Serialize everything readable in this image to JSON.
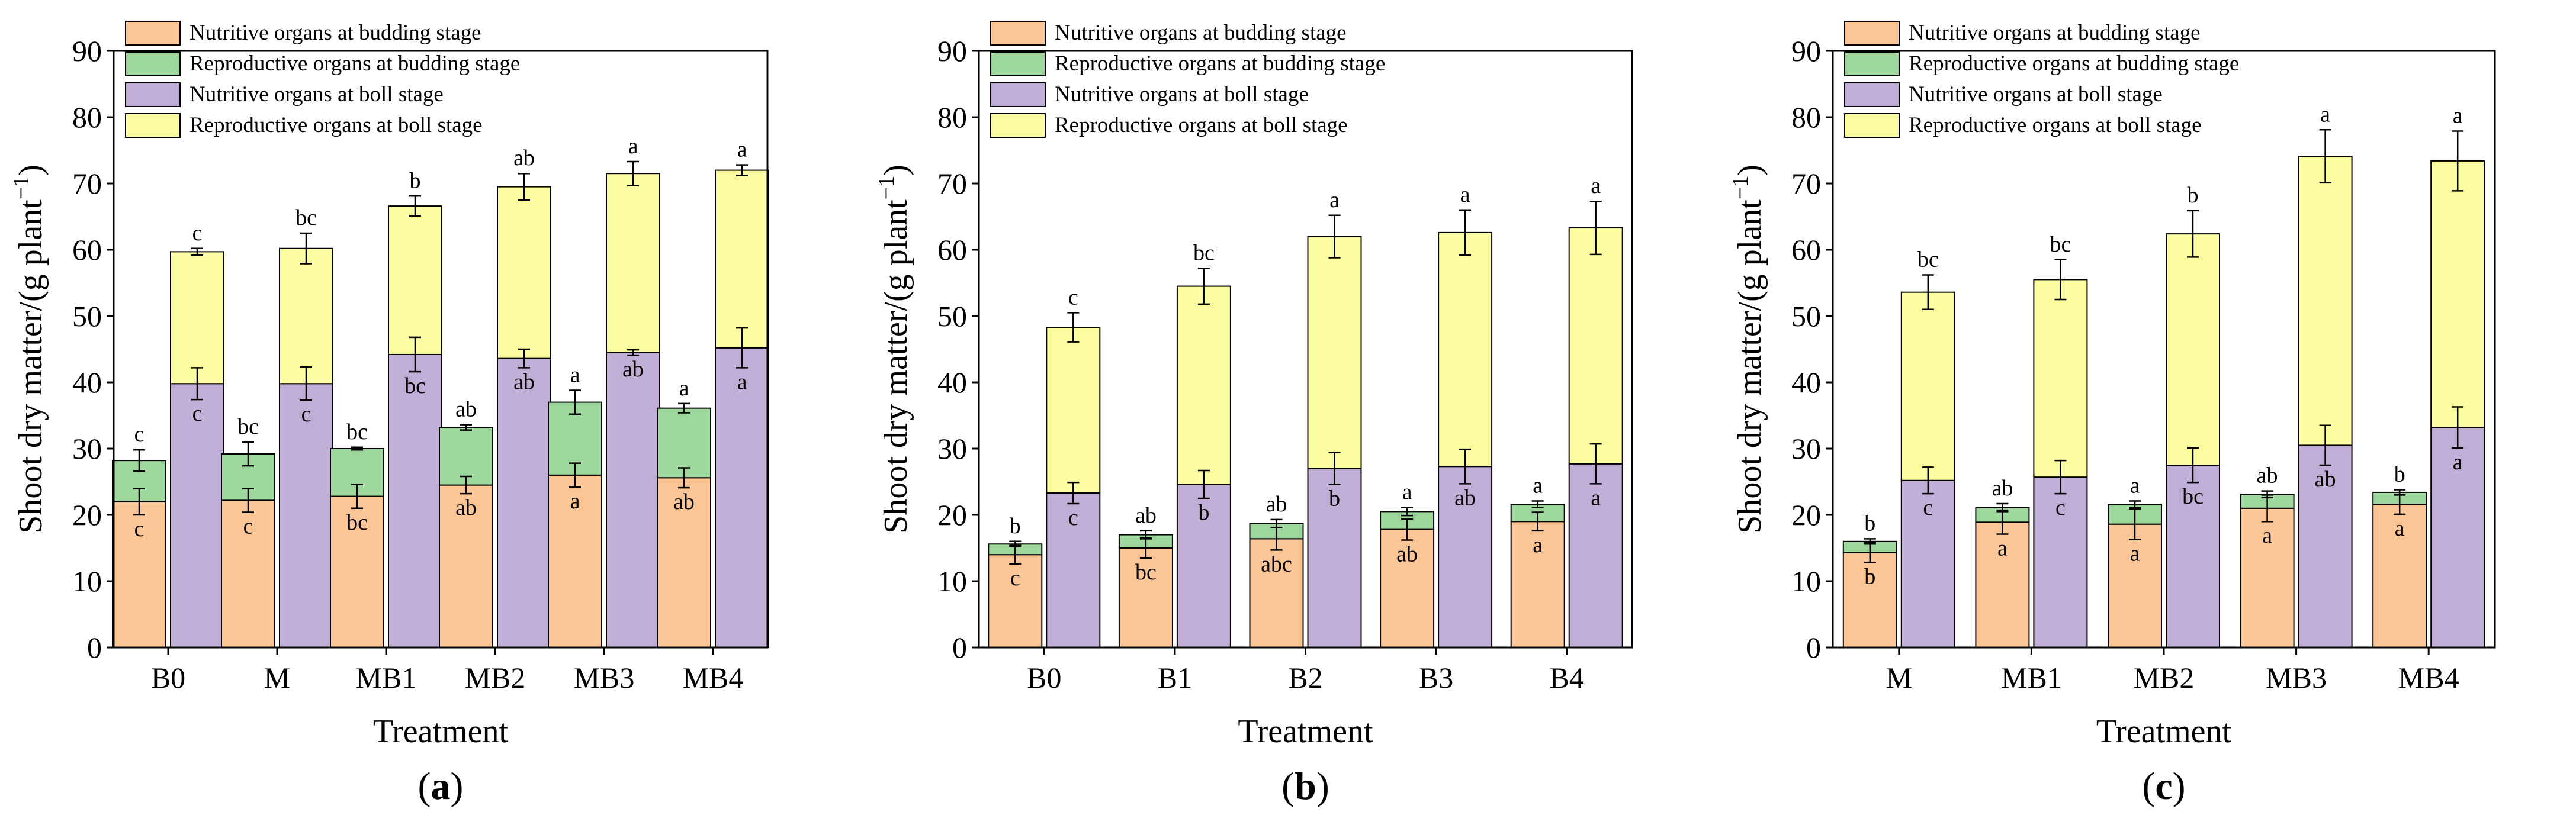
{
  "colors": {
    "nutritive_budding": "#FCC596",
    "reproductive_budding": "#9DD79B",
    "nutritive_boll": "#C0AED6",
    "reproductive_boll": "#FCFCA0"
  },
  "legend": [
    {
      "key": "nutritive_budding",
      "label": "Nutritive organs at budding stage"
    },
    {
      "key": "reproductive_budding",
      "label": "Reproductive organs at budding stage"
    },
    {
      "key": "nutritive_boll",
      "label": "Nutritive organs at boll stage"
    },
    {
      "key": "reproductive_boll",
      "label": "Reproductive organs at boll stage"
    }
  ],
  "chart_data": [
    {
      "type": "bar",
      "stacked": true,
      "panel": "a",
      "xlabel": "Treatment",
      "ylabel": "Shoot dry matter/(g plant",
      "ylabel_sup": "−1",
      "ylabel_close": ")",
      "ylim": [
        0,
        90
      ],
      "yticks": [
        0,
        10,
        20,
        30,
        40,
        50,
        60,
        70,
        80,
        90
      ],
      "categories": [
        "B0",
        "M",
        "MB1",
        "MB2",
        "MB3",
        "MB4"
      ],
      "budding": {
        "nutritive": [
          22.0,
          22.2,
          22.8,
          24.5,
          26.0,
          25.6
        ],
        "reproductive": [
          6.2,
          7.0,
          7.2,
          8.7,
          11.0,
          10.5
        ],
        "total": [
          28.2,
          29.2,
          30.0,
          33.2,
          37.0,
          36.1
        ],
        "nutritive_err": [
          2.0,
          1.8,
          1.8,
          1.3,
          1.8,
          1.5
        ],
        "total_err": [
          1.6,
          1.8,
          0.2,
          0.4,
          1.8,
          0.7
        ],
        "nutritive_letters": [
          "c",
          "c",
          "bc",
          "ab",
          "a",
          "ab"
        ],
        "total_letters": [
          "c",
          "bc",
          "bc",
          "ab",
          "a",
          "a"
        ]
      },
      "boll": {
        "nutritive": [
          39.8,
          39.8,
          44.2,
          43.6,
          44.5,
          45.2
        ],
        "reproductive": [
          19.9,
          20.4,
          22.4,
          25.9,
          27.0,
          26.8
        ],
        "total": [
          59.7,
          60.2,
          66.6,
          69.5,
          71.5,
          72.0
        ],
        "nutritive_err": [
          2.4,
          2.5,
          2.6,
          1.4,
          0.4,
          3.0
        ],
        "total_err": [
          0.5,
          2.3,
          1.5,
          2.0,
          1.8,
          0.8
        ],
        "nutritive_letters": [
          "c",
          "c",
          "bc",
          "ab",
          "ab",
          "a"
        ],
        "total_letters": [
          "c",
          "bc",
          "b",
          "ab",
          "a",
          "a"
        ]
      }
    },
    {
      "type": "bar",
      "stacked": true,
      "panel": "b",
      "xlabel": "Treatment",
      "ylabel": "Shoot dry matter/(g plant",
      "ylabel_sup": "−1",
      "ylabel_close": ")",
      "ylim": [
        0,
        90
      ],
      "yticks": [
        0,
        10,
        20,
        30,
        40,
        50,
        60,
        70,
        80,
        90
      ],
      "categories": [
        "B0",
        "B1",
        "B2",
        "B3",
        "B4"
      ],
      "budding": {
        "nutritive": [
          14.0,
          15.0,
          16.4,
          17.8,
          19.0
        ],
        "reproductive": [
          1.6,
          2.0,
          2.3,
          2.7,
          2.6
        ],
        "total": [
          15.6,
          17.0,
          18.7,
          20.5,
          21.6
        ],
        "nutritive_err": [
          1.4,
          1.5,
          1.7,
          1.6,
          1.4
        ],
        "total_err": [
          0.4,
          0.6,
          0.6,
          0.6,
          0.5
        ],
        "nutritive_letters": [
          "c",
          "bc",
          "abc",
          "ab",
          "a"
        ],
        "total_letters": [
          "b",
          "ab",
          "ab",
          "a",
          "a"
        ]
      },
      "boll": {
        "nutritive": [
          23.3,
          24.6,
          27.0,
          27.3,
          27.7
        ],
        "reproductive": [
          25.0,
          29.9,
          35.0,
          35.3,
          35.6
        ],
        "total": [
          48.3,
          54.5,
          62.0,
          62.6,
          63.3
        ],
        "nutritive_err": [
          1.6,
          2.1,
          2.4,
          2.6,
          3.0
        ],
        "total_err": [
          2.2,
          2.7,
          3.2,
          3.4,
          4.0
        ],
        "nutritive_letters": [
          "c",
          "b",
          "b",
          "ab",
          "a"
        ],
        "total_letters": [
          "c",
          "bc",
          "a",
          "a",
          "a"
        ]
      }
    },
    {
      "type": "bar",
      "stacked": true,
      "panel": "c",
      "xlabel": "Treatment",
      "ylabel": "Shoot dry matter/(g plant",
      "ylabel_sup": "−1",
      "ylabel_close": ")",
      "ylim": [
        0,
        90
      ],
      "yticks": [
        0,
        10,
        20,
        30,
        40,
        50,
        60,
        70,
        80,
        90
      ],
      "categories": [
        "M",
        "MB1",
        "MB2",
        "MB3",
        "MB4"
      ],
      "budding": {
        "nutritive": [
          14.3,
          18.9,
          18.6,
          21.0,
          21.6
        ],
        "reproductive": [
          1.7,
          2.2,
          3.0,
          2.1,
          1.8
        ],
        "total": [
          16.0,
          21.1,
          21.6,
          23.1,
          23.4
        ],
        "nutritive_err": [
          1.5,
          1.8,
          2.3,
          2.0,
          1.5
        ],
        "total_err": [
          0.4,
          0.6,
          0.5,
          0.5,
          0.4
        ],
        "nutritive_letters": [
          "b",
          "a",
          "a",
          "a",
          "a"
        ],
        "total_letters": [
          "b",
          "ab",
          "a",
          "ab",
          "b"
        ]
      },
      "boll": {
        "nutritive": [
          25.2,
          25.7,
          27.5,
          30.5,
          33.2
        ],
        "reproductive": [
          28.4,
          29.8,
          34.9,
          43.6,
          40.2
        ],
        "total": [
          53.6,
          55.5,
          62.4,
          74.1,
          73.4
        ],
        "nutritive_err": [
          2.0,
          2.5,
          2.6,
          3.0,
          3.1
        ],
        "total_err": [
          2.6,
          3.0,
          3.5,
          4.0,
          4.5
        ],
        "nutritive_letters": [
          "c",
          "c",
          "bc",
          "ab",
          "a"
        ],
        "total_letters": [
          "bc",
          "bc",
          "b",
          "a",
          "a"
        ]
      }
    }
  ]
}
